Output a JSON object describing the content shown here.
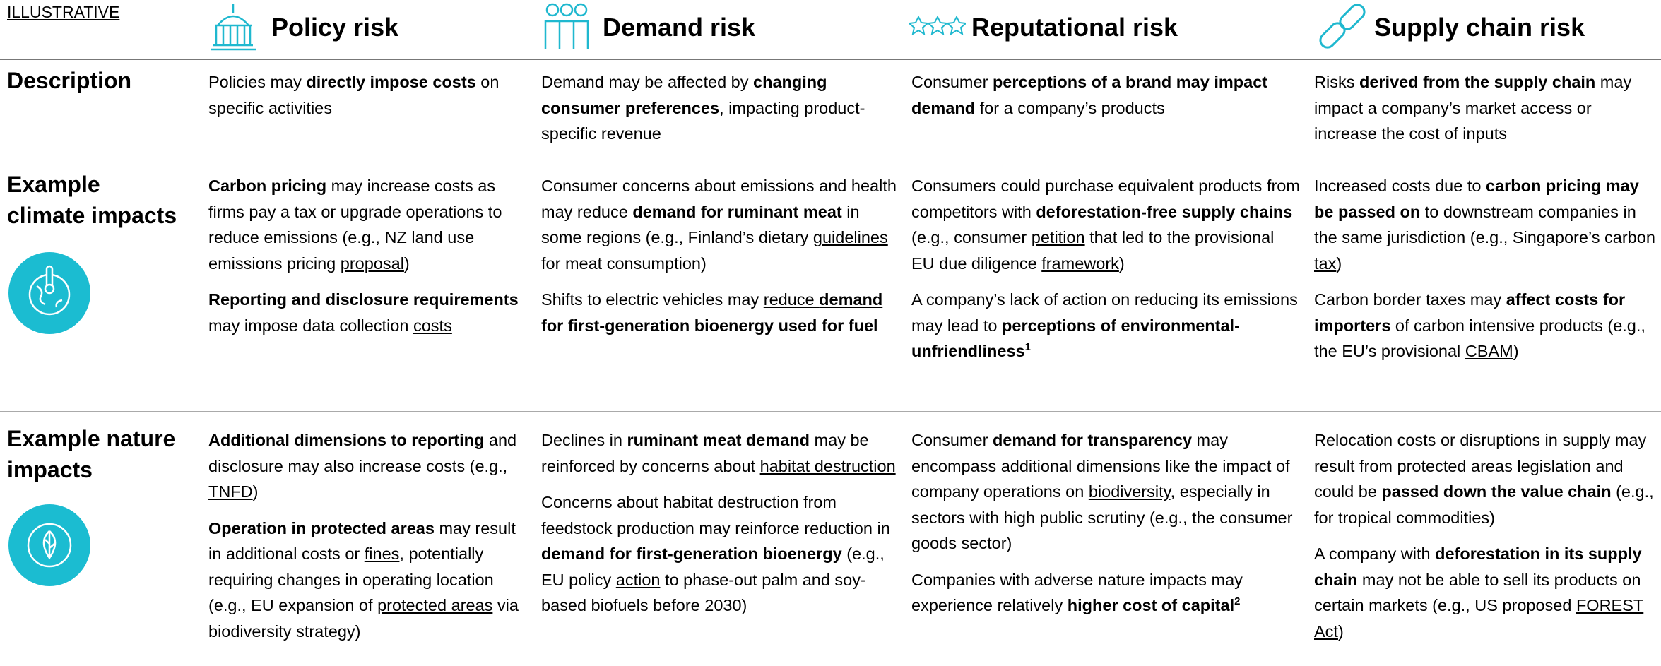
{
  "label": "ILLUSTRATIVE",
  "columns": [
    {
      "title": "Policy risk"
    },
    {
      "title": "Demand risk"
    },
    {
      "title": "Reputational risk"
    },
    {
      "title": "Supply chain risk"
    }
  ],
  "rows": [
    {
      "title": "Description",
      "cells": [
        [
          [
            "Policies may ",
            {
              "text": "directly impose costs",
              "bold": true
            },
            " on specific activities"
          ]
        ],
        [
          [
            "Demand may be affected by ",
            {
              "text": "changing consumer preferences",
              "bold": true
            },
            ", impacting product-specific revenue"
          ]
        ],
        [
          [
            "Consumer ",
            {
              "text": "perceptions of a brand may impact demand",
              "bold": true
            },
            " for a company’s products"
          ]
        ],
        [
          [
            "Risks ",
            {
              "text": "derived from the supply chain",
              "bold": true
            },
            " may impact a company’s market access or increase the cost of inputs"
          ]
        ]
      ]
    },
    {
      "title": "Example climate impacts",
      "cells": [
        [
          [
            {
              "text": "Carbon pricing",
              "bold": true
            },
            " may increase costs as firms pay a tax or upgrade operations to reduce emissions (e.g., NZ land use emissions pricing ",
            {
              "text": "proposal",
              "underline": true
            },
            ")"
          ],
          [
            {
              "text": "Reporting and disclosure requirements",
              "bold": true
            },
            " may impose data collection ",
            {
              "text": "costs",
              "underline": true
            }
          ]
        ],
        [
          [
            "Consumer concerns about emissions and health may reduce ",
            {
              "text": "demand for ruminant meat",
              "bold": true
            },
            " in some regions (e.g., Finland’s dietary ",
            {
              "text": "guidelines",
              "underline": true
            },
            " for meat consumption)"
          ],
          [
            "Shifts to electric vehicles may ",
            {
              "text": "reduce ",
              "underline": true
            },
            {
              "text": "demand ",
              "bold": true,
              "underline": true
            },
            {
              "text": "for first-generation bioenergy used for fuel",
              "bold": true
            }
          ]
        ],
        [
          [
            "Consumers could purchase equivalent products from competitors with ",
            {
              "text": "deforestation-free supply chains",
              "bold": true
            },
            " (e.g., consumer ",
            {
              "text": "petition",
              "underline": true
            },
            " that led to the provisional EU due diligence ",
            {
              "text": "framework",
              "underline": true
            },
            ")"
          ],
          [
            "A company’s lack of action on reducing its emissions may lead to ",
            {
              "text": "perceptions of environmental-unfriendliness",
              "bold": true
            },
            {
              "text": "1",
              "bold": true,
              "sup": true
            }
          ]
        ],
        [
          [
            "Increased costs due to ",
            {
              "text": "carbon pricing may be passed on",
              "bold": true
            },
            " to downstream companies in the same jurisdiction (e.g., Singapore’s carbon ",
            {
              "text": "tax",
              "underline": true
            },
            ")"
          ],
          [
            "Carbon border taxes may ",
            {
              "text": "affect costs for importers",
              "bold": true
            },
            " of carbon intensive products (e.g., the EU’s provisional ",
            {
              "text": "CBAM",
              "underline": true
            },
            ")"
          ]
        ]
      ]
    },
    {
      "title": "Example nature impacts",
      "cells": [
        [
          [
            {
              "text": "Additional dimensions to reporting",
              "bold": true
            },
            " and disclosure may also increase costs (e.g., ",
            {
              "text": "TNFD",
              "underline": true
            },
            ")"
          ],
          [
            {
              "text": "Operation in protected areas",
              "bold": true
            },
            " may result in additional costs or ",
            {
              "text": "fines",
              "underline": true
            },
            ", potentially requiring changes in operating location (e.g., EU expansion of ",
            {
              "text": "protected areas",
              "underline": true
            },
            " via biodiversity strategy)"
          ]
        ],
        [
          [
            "Declines in ",
            {
              "text": "ruminant meat demand",
              "bold": true
            },
            " may be reinforced by concerns about ",
            {
              "text": "habitat destruction",
              "underline": true
            }
          ],
          [
            "Concerns about habitat destruction from feedstock production may reinforce reduction in ",
            {
              "text": "demand for first-generation bioenergy",
              "bold": true
            },
            " (e.g., EU policy ",
            {
              "text": "action",
              "underline": true
            },
            " to phase-out palm and soy-based biofuels before 2030)"
          ]
        ],
        [
          [
            "Consumer ",
            {
              "text": "demand for transparency",
              "bold": true
            },
            " may encompass additional dimensions like the impact of company operations on ",
            {
              "text": "biodiversity",
              "underline": true
            },
            ", especially in sectors with high public scrutiny (e.g., the consumer goods sector)"
          ],
          [
            "Companies with adverse nature impacts may experience relatively ",
            {
              "text": "higher cost of capital",
              "bold": true
            },
            {
              "text": "2",
              "bold": true,
              "sup": true
            }
          ]
        ],
        [
          [
            "Relocation costs or disruptions in supply may result from protected areas legislation and could be ",
            {
              "text": "passed down the value chain",
              "bold": true
            },
            " (e.g., for tropical commodities)"
          ],
          [
            "A company with ",
            {
              "text": "deforestation in its supply chain",
              "bold": true
            },
            " may not be able to sell its products on certain markets (e.g., US proposed ",
            {
              "text": "FOREST Act",
              "underline": true
            },
            ")"
          ]
        ]
      ]
    }
  ]
}
